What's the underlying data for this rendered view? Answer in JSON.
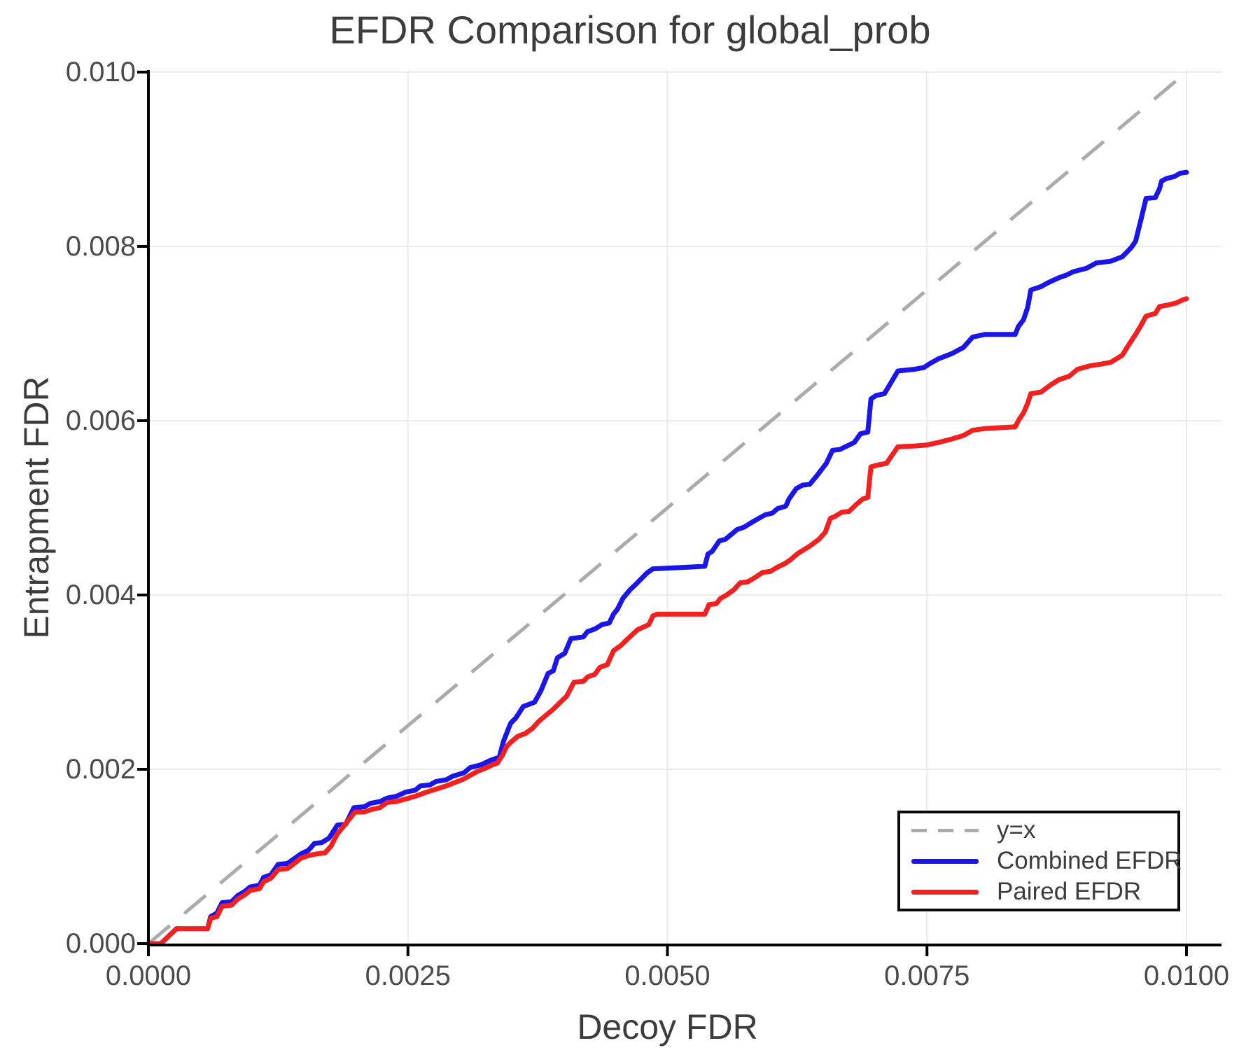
{
  "title": "EFDR Comparison for global_prob",
  "axes": {
    "x": {
      "label": "Decoy FDR",
      "range": [
        0,
        0.01
      ],
      "tick_values": [
        0,
        0.0025,
        0.005,
        0.0075,
        0.01
      ],
      "tick_labels": [
        "0.0000",
        "0.0025",
        "0.0050",
        "0.0075",
        "0.0100"
      ]
    },
    "y": {
      "label": "Entrapment FDR",
      "range": [
        0,
        0.01
      ],
      "tick_values": [
        0,
        0.002,
        0.004,
        0.006,
        0.008,
        0.01
      ],
      "tick_labels": [
        "0.000",
        "0.002",
        "0.004",
        "0.006",
        "0.008",
        "0.010"
      ]
    }
  },
  "legend": {
    "entries": [
      {
        "label": "y=x",
        "style": "dashed",
        "color": "#ababab"
      },
      {
        "label": "Combined EFDR",
        "style": "solid",
        "color": "#1a15eb"
      },
      {
        "label": "Paired EFDR",
        "style": "solid",
        "color": "#f32020"
      }
    ]
  },
  "colors": {
    "grid": "#ebebeb",
    "spine": "#000000",
    "tick_text": "#4b4b4b",
    "title_text": "#3c3c3c",
    "reference": "#ababab",
    "combined": "#1a15eb",
    "paired": "#f32020"
  },
  "chart_data": {
    "type": "line",
    "title": "EFDR Comparison for global_prob",
    "xlabel": "Decoy FDR",
    "ylabel": "Entrapment FDR",
    "xlim": [
      0,
      0.01
    ],
    "ylim": [
      0,
      0.01
    ],
    "grid": true,
    "legend_position": "lower right",
    "reference_line": {
      "name": "y=x",
      "points": [
        [
          0,
          0
        ],
        [
          0.01,
          0.01
        ]
      ],
      "style": "dashed",
      "color": "#ababab"
    },
    "series": [
      {
        "name": "Combined EFDR",
        "color": "#1a15eb",
        "points": [
          [
            0,
            0
          ],
          [
            0.00012,
            0
          ],
          [
            0.00019,
            8e-05
          ],
          [
            0.00027,
            0.00017
          ],
          [
            0.00057,
            0.00017
          ],
          [
            0.0006,
            0.00031
          ],
          [
            0.00066,
            0.00035
          ],
          [
            0.00071,
            0.00047
          ],
          [
            0.0008,
            0.00048
          ],
          [
            0.00086,
            0.00055
          ],
          [
            0.00093,
            0.0006
          ],
          [
            0.00098,
            0.00065
          ],
          [
            0.00107,
            0.00067
          ],
          [
            0.00111,
            0.00076
          ],
          [
            0.00118,
            0.00079
          ],
          [
            0.00125,
            0.00091
          ],
          [
            0.00134,
            0.00092
          ],
          [
            0.00147,
            0.00103
          ],
          [
            0.00154,
            0.00107
          ],
          [
            0.0016,
            0.00115
          ],
          [
            0.00167,
            0.00116
          ],
          [
            0.00174,
            0.00121
          ],
          [
            0.00182,
            0.00136
          ],
          [
            0.0019,
            0.00137
          ],
          [
            0.00198,
            0.00156
          ],
          [
            0.00208,
            0.00157
          ],
          [
            0.00214,
            0.00161
          ],
          [
            0.00223,
            0.00163
          ],
          [
            0.0023,
            0.00167
          ],
          [
            0.00239,
            0.00169
          ],
          [
            0.00248,
            0.00174
          ],
          [
            0.00257,
            0.00176
          ],
          [
            0.00262,
            0.00181
          ],
          [
            0.00271,
            0.00182
          ],
          [
            0.00277,
            0.00186
          ],
          [
            0.00287,
            0.00188
          ],
          [
            0.00293,
            0.00192
          ],
          [
            0.00304,
            0.00196
          ],
          [
            0.0031,
            0.00202
          ],
          [
            0.0032,
            0.00205
          ],
          [
            0.00329,
            0.0021
          ],
          [
            0.00338,
            0.00214
          ],
          [
            0.00342,
            0.00232
          ],
          [
            0.00346,
            0.00244
          ],
          [
            0.00349,
            0.00253
          ],
          [
            0.00354,
            0.00259
          ],
          [
            0.00361,
            0.00272
          ],
          [
            0.00372,
            0.00277
          ],
          [
            0.00378,
            0.0029
          ],
          [
            0.00385,
            0.0031
          ],
          [
            0.0039,
            0.00313
          ],
          [
            0.00394,
            0.00328
          ],
          [
            0.00401,
            0.00333
          ],
          [
            0.00407,
            0.0035
          ],
          [
            0.00419,
            0.00352
          ],
          [
            0.00423,
            0.00358
          ],
          [
            0.0043,
            0.00361
          ],
          [
            0.00437,
            0.00366
          ],
          [
            0.00444,
            0.00368
          ],
          [
            0.00448,
            0.00378
          ],
          [
            0.00452,
            0.00384
          ],
          [
            0.00457,
            0.00396
          ],
          [
            0.00464,
            0.00406
          ],
          [
            0.00471,
            0.00414
          ],
          [
            0.0048,
            0.00425
          ],
          [
            0.00486,
            0.0043
          ],
          [
            0.0052,
            0.00432
          ],
          [
            0.00536,
            0.00433
          ],
          [
            0.00539,
            0.00447
          ],
          [
            0.00543,
            0.0045
          ],
          [
            0.0055,
            0.00462
          ],
          [
            0.00556,
            0.00464
          ],
          [
            0.00567,
            0.00475
          ],
          [
            0.00574,
            0.00478
          ],
          [
            0.00585,
            0.00486
          ],
          [
            0.00594,
            0.00492
          ],
          [
            0.00601,
            0.00494
          ],
          [
            0.00606,
            0.00499
          ],
          [
            0.00614,
            0.00502
          ],
          [
            0.00617,
            0.0051
          ],
          [
            0.00624,
            0.00522
          ],
          [
            0.0063,
            0.00526
          ],
          [
            0.00637,
            0.00527
          ],
          [
            0.00644,
            0.00537
          ],
          [
            0.00653,
            0.00551
          ],
          [
            0.00659,
            0.00566
          ],
          [
            0.00666,
            0.00567
          ],
          [
            0.00673,
            0.00571
          ],
          [
            0.0068,
            0.00575
          ],
          [
            0.00686,
            0.00585
          ],
          [
            0.00693,
            0.00587
          ],
          [
            0.00696,
            0.00625
          ],
          [
            0.00701,
            0.00629
          ],
          [
            0.00709,
            0.00631
          ],
          [
            0.00715,
            0.00643
          ],
          [
            0.00722,
            0.00657
          ],
          [
            0.00738,
            0.00659
          ],
          [
            0.00747,
            0.00661
          ],
          [
            0.00752,
            0.00665
          ],
          [
            0.00761,
            0.00671
          ],
          [
            0.00774,
            0.00677
          ],
          [
            0.00785,
            0.00684
          ],
          [
            0.00794,
            0.00696
          ],
          [
            0.00806,
            0.00699
          ],
          [
            0.00835,
            0.00699
          ],
          [
            0.00838,
            0.00708
          ],
          [
            0.00843,
            0.00716
          ],
          [
            0.00847,
            0.0073
          ],
          [
            0.0085,
            0.0075
          ],
          [
            0.0086,
            0.00754
          ],
          [
            0.00866,
            0.00758
          ],
          [
            0.00877,
            0.00764
          ],
          [
            0.00884,
            0.00767
          ],
          [
            0.00891,
            0.00771
          ],
          [
            0.00904,
            0.00775
          ],
          [
            0.00913,
            0.00781
          ],
          [
            0.00927,
            0.00783
          ],
          [
            0.00938,
            0.00788
          ],
          [
            0.00943,
            0.00794
          ],
          [
            0.00947,
            0.00799
          ],
          [
            0.00951,
            0.00806
          ],
          [
            0.00956,
            0.0083
          ],
          [
            0.00961,
            0.00855
          ],
          [
            0.0097,
            0.00856
          ],
          [
            0.00974,
            0.00866
          ],
          [
            0.00976,
            0.00875
          ],
          [
            0.00981,
            0.00878
          ],
          [
            0.00988,
            0.0088
          ],
          [
            0.00994,
            0.00884
          ],
          [
            0.01,
            0.00885
          ]
        ]
      },
      {
        "name": "Paired EFDR",
        "color": "#f32020",
        "points": [
          [
            0,
            0
          ],
          [
            0.00012,
            0
          ],
          [
            0.00019,
            8e-05
          ],
          [
            0.00027,
            0.00017
          ],
          [
            0.00057,
            0.00017
          ],
          [
            0.0006,
            0.00029
          ],
          [
            0.00066,
            0.00031
          ],
          [
            0.00071,
            0.00043
          ],
          [
            0.0008,
            0.00044
          ],
          [
            0.00086,
            0.00051
          ],
          [
            0.00093,
            0.00056
          ],
          [
            0.00098,
            0.00061
          ],
          [
            0.00107,
            0.00063
          ],
          [
            0.00111,
            0.00071
          ],
          [
            0.00118,
            0.00075
          ],
          [
            0.00125,
            0.00085
          ],
          [
            0.00134,
            0.00086
          ],
          [
            0.00147,
            0.00098
          ],
          [
            0.00154,
            0.00101
          ],
          [
            0.00162,
            0.00103
          ],
          [
            0.0017,
            0.00104
          ],
          [
            0.00176,
            0.00112
          ],
          [
            0.00182,
            0.00126
          ],
          [
            0.00187,
            0.00133
          ],
          [
            0.00199,
            0.00151
          ],
          [
            0.00208,
            0.00151
          ],
          [
            0.00215,
            0.00154
          ],
          [
            0.00223,
            0.00156
          ],
          [
            0.0023,
            0.00162
          ],
          [
            0.00239,
            0.00163
          ],
          [
            0.00248,
            0.00166
          ],
          [
            0.00257,
            0.00169
          ],
          [
            0.00271,
            0.00175
          ],
          [
            0.00287,
            0.00181
          ],
          [
            0.00304,
            0.00189
          ],
          [
            0.00316,
            0.00197
          ],
          [
            0.00324,
            0.00201
          ],
          [
            0.00331,
            0.00205
          ],
          [
            0.00336,
            0.00207
          ],
          [
            0.00341,
            0.00216
          ],
          [
            0.00345,
            0.00226
          ],
          [
            0.00349,
            0.00231
          ],
          [
            0.00356,
            0.00238
          ],
          [
            0.00363,
            0.00241
          ],
          [
            0.0037,
            0.00247
          ],
          [
            0.00376,
            0.00255
          ],
          [
            0.00383,
            0.00262
          ],
          [
            0.0039,
            0.00269
          ],
          [
            0.00396,
            0.00276
          ],
          [
            0.00403,
            0.00284
          ],
          [
            0.0041,
            0.003
          ],
          [
            0.00419,
            0.00301
          ],
          [
            0.00423,
            0.00306
          ],
          [
            0.0043,
            0.00309
          ],
          [
            0.00435,
            0.00317
          ],
          [
            0.00442,
            0.0032
          ],
          [
            0.00448,
            0.00336
          ],
          [
            0.00455,
            0.00342
          ],
          [
            0.00462,
            0.0035
          ],
          [
            0.00471,
            0.0036
          ],
          [
            0.00482,
            0.00366
          ],
          [
            0.00486,
            0.00376
          ],
          [
            0.0049,
            0.00378
          ],
          [
            0.00536,
            0.00378
          ],
          [
            0.0054,
            0.00389
          ],
          [
            0.00547,
            0.0039
          ],
          [
            0.00551,
            0.00396
          ],
          [
            0.00557,
            0.004
          ],
          [
            0.00564,
            0.00406
          ],
          [
            0.0057,
            0.00414
          ],
          [
            0.00577,
            0.00415
          ],
          [
            0.00583,
            0.00419
          ],
          [
            0.00592,
            0.00426
          ],
          [
            0.00599,
            0.00427
          ],
          [
            0.00606,
            0.00432
          ],
          [
            0.00613,
            0.00436
          ],
          [
            0.00618,
            0.0044
          ],
          [
            0.00626,
            0.00448
          ],
          [
            0.00637,
            0.00456
          ],
          [
            0.00646,
            0.00464
          ],
          [
            0.00652,
            0.00472
          ],
          [
            0.00657,
            0.00488
          ],
          [
            0.00661,
            0.0049
          ],
          [
            0.00668,
            0.00495
          ],
          [
            0.00675,
            0.00496
          ],
          [
            0.00682,
            0.00504
          ],
          [
            0.00688,
            0.0051
          ],
          [
            0.00693,
            0.00512
          ],
          [
            0.00696,
            0.00547
          ],
          [
            0.00702,
            0.00549
          ],
          [
            0.00711,
            0.00551
          ],
          [
            0.00715,
            0.00558
          ],
          [
            0.00722,
            0.0057
          ],
          [
            0.00738,
            0.00571
          ],
          [
            0.00749,
            0.00572
          ],
          [
            0.00761,
            0.00575
          ],
          [
            0.00774,
            0.00579
          ],
          [
            0.00785,
            0.00583
          ],
          [
            0.00794,
            0.00589
          ],
          [
            0.00806,
            0.00591
          ],
          [
            0.00835,
            0.00593
          ],
          [
            0.00839,
            0.00602
          ],
          [
            0.00843,
            0.00609
          ],
          [
            0.00847,
            0.0062
          ],
          [
            0.0085,
            0.00631
          ],
          [
            0.0086,
            0.00633
          ],
          [
            0.00869,
            0.00641
          ],
          [
            0.00877,
            0.00647
          ],
          [
            0.00887,
            0.00651
          ],
          [
            0.00895,
            0.00659
          ],
          [
            0.00907,
            0.00663
          ],
          [
            0.00918,
            0.00665
          ],
          [
            0.00927,
            0.00667
          ],
          [
            0.00938,
            0.00675
          ],
          [
            0.00947,
            0.00692
          ],
          [
            0.00951,
            0.00699
          ],
          [
            0.00956,
            0.00709
          ],
          [
            0.00961,
            0.0072
          ],
          [
            0.0097,
            0.00723
          ],
          [
            0.00974,
            0.00731
          ],
          [
            0.00983,
            0.00733
          ],
          [
            0.0099,
            0.00735
          ],
          [
            0.00997,
            0.00739
          ],
          [
            0.01,
            0.0074
          ]
        ]
      }
    ]
  }
}
